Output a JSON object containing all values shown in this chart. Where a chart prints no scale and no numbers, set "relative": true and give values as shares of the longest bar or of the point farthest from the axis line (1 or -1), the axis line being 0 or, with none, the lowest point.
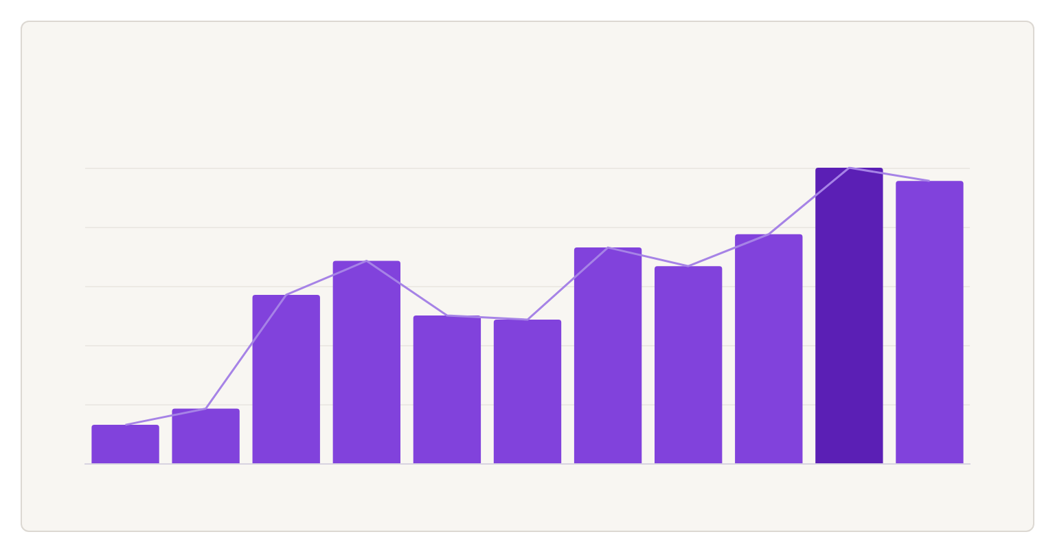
{
  "chart_data": [
    {
      "type": "bar",
      "relative": true,
      "grid": "y",
      "categories": [
        null,
        null,
        null,
        null,
        null,
        null,
        null,
        null,
        null,
        null,
        null
      ],
      "colors": [
        "#8142dc",
        "#8142dc",
        "#8142dc",
        "#8142dc",
        "#8142dc",
        "#8142dc",
        "#8142dc",
        "#8142dc",
        "#8142dc",
        "#5b1fb5",
        "#8142dc"
      ],
      "values": [
        0.13,
        0.185,
        0.57,
        0.685,
        0.5,
        0.486,
        0.73,
        0.667,
        0.775,
        1,
        0.955
      ]
    },
    {
      "type": "line",
      "relative": true,
      "marker": "none",
      "line_style": "solid",
      "categories": [
        null,
        null,
        null,
        null,
        null,
        null,
        null,
        null,
        null,
        null,
        null
      ],
      "color": "#a683e6",
      "values": [
        0.13,
        0.185,
        0.57,
        0.685,
        0.5,
        0.486,
        0.73,
        0.667,
        0.775,
        1,
        0.955
      ]
    }
  ]
}
